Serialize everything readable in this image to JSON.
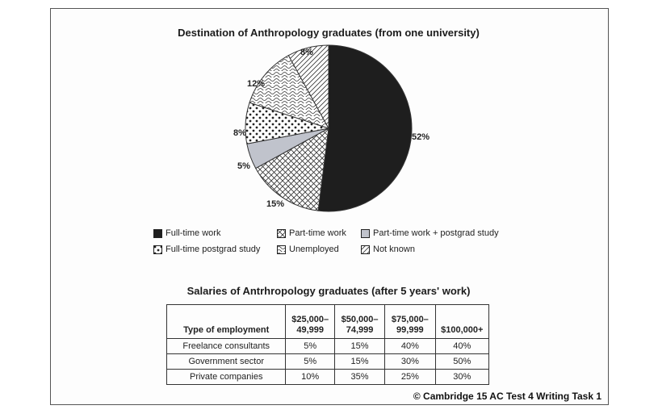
{
  "chart_data": [
    {
      "type": "pie",
      "title": "Destination of Anthropology graduates (from one university)",
      "slices": [
        {
          "name": "Full-time work",
          "value": 52,
          "label": "52%",
          "pattern": "solid-dark"
        },
        {
          "name": "Part-time work",
          "value": 15,
          "label": "15%",
          "pattern": "crosshatch"
        },
        {
          "name": "Part-time work + postgrad study",
          "value": 5,
          "label": "5%",
          "pattern": "solid-light"
        },
        {
          "name": "Full-time postgrad study",
          "value": 8,
          "label": "8%",
          "pattern": "dots"
        },
        {
          "name": "Unemployed",
          "value": 12,
          "label": "12%",
          "pattern": "squiggle"
        },
        {
          "name": "Not known",
          "value": 8,
          "label": "8%",
          "pattern": "diagonal"
        }
      ],
      "legend_placement": "bottom"
    },
    {
      "type": "table",
      "title": "Salaries of Antrhropology graduates (after 5 years' work)",
      "columns": [
        "Type of employment",
        "$25,000–\n49,999",
        "$50,000–\n74,999",
        "$75,000–\n99,999",
        "$100,000+"
      ],
      "rows": [
        [
          "Freelance consultants",
          "5%",
          "15%",
          "40%",
          "40%"
        ],
        [
          "Government sector",
          "5%",
          "15%",
          "30%",
          "50%"
        ],
        [
          "Private companies",
          "10%",
          "35%",
          "25%",
          "30%"
        ]
      ]
    }
  ],
  "copyright": "© Cambridge 15 AC Test 4 Writing Task 1",
  "colors": {
    "dark": "#1e1e1e",
    "light": "#c0c3cc",
    "line": "#333333"
  }
}
